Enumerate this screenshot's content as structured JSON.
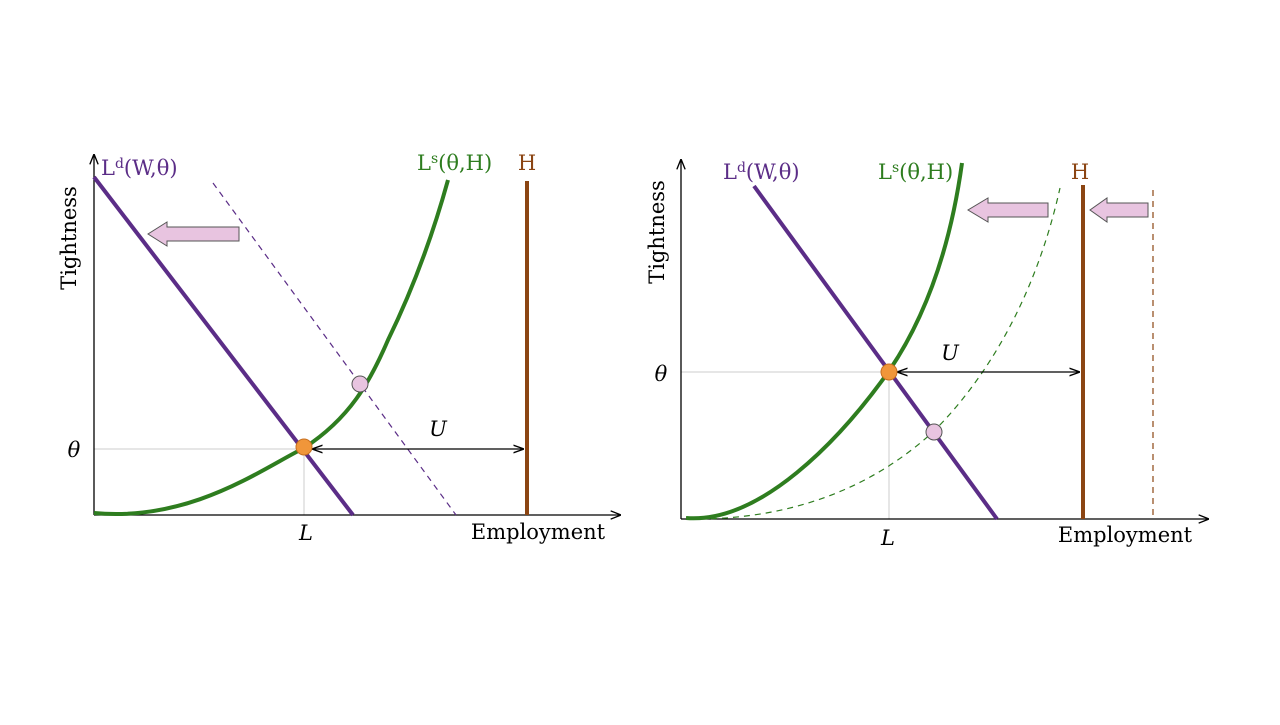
{
  "colors": {
    "demand": "#5b2d87",
    "supply": "#2e7d1f",
    "labor_force": "#8b4513",
    "equilibrium_point": "#f0963a",
    "shifted_point": "#e8c4e0",
    "shift_arrow": "#e8c4e0",
    "axis": "#000000",
    "guide": "#cccccc"
  },
  "panels": [
    {
      "id": "left",
      "ylabel": "Tightness",
      "xlabel": "Employment",
      "theta_label": "θ",
      "l_label": "L",
      "u_label": "U",
      "h_label": "H",
      "ld": {
        "base": "L",
        "sup": "d",
        "args": "(W,θ)"
      },
      "ls": {
        "base": "L",
        "sup": "s",
        "args": "(θ,H)"
      },
      "shift": "labor demand shifts left"
    },
    {
      "id": "right",
      "ylabel": "Tightness",
      "xlabel": "Employment",
      "theta_label": "θ",
      "l_label": "L",
      "u_label": "U",
      "h_label": "H",
      "ld": {
        "base": "L",
        "sup": "d",
        "args": "(W,θ)"
      },
      "ls": {
        "base": "L",
        "sup": "s",
        "args": "(θ,H)"
      },
      "shift": "labor force and labor supply shift left"
    }
  ]
}
